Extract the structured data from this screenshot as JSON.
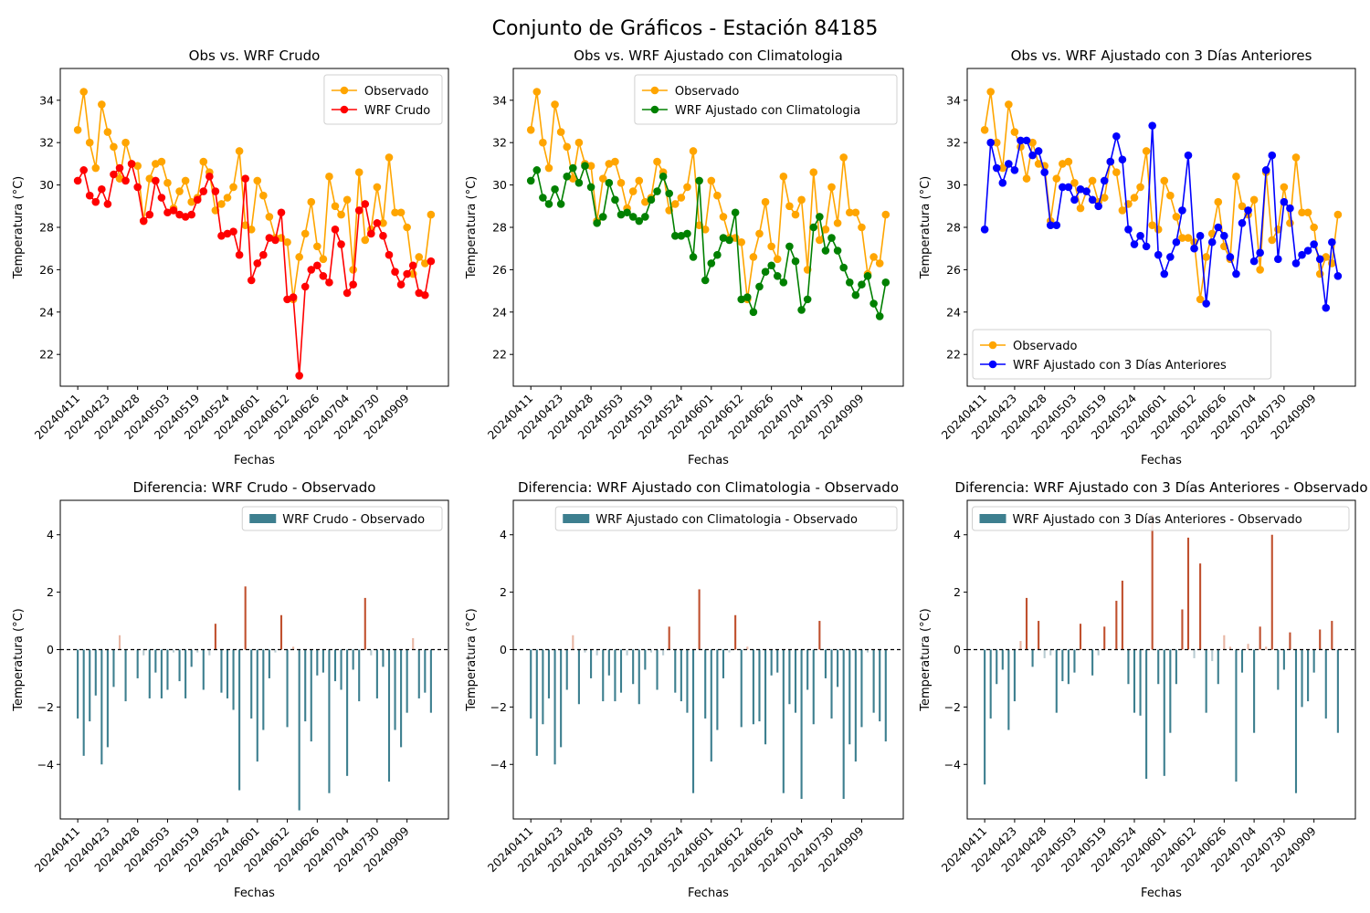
{
  "figure": {
    "suptitle": "Conjunto de Gráficos - Estación 84185"
  },
  "colors": {
    "observado": "#FFA500",
    "wrf_crudo": "#FF0000",
    "wrf_clim": "#008000",
    "wrf_3dias": "#0000FF",
    "diff_neg": "#3D7F8F",
    "diff_pos": "#C0502E",
    "diff_neg_light": "#B9CCD2",
    "diff_pos_light": "#E8B6A4"
  },
  "labels": {
    "xlabel": "Fechas",
    "ylabel": "Temperatura (°C)",
    "observado_legend": "Observado"
  },
  "chart_data": [
    {
      "type": "line",
      "title": "Obs vs. WRF Crudo",
      "ylim": [
        20.5,
        35.5
      ],
      "yticks": [
        22,
        24,
        26,
        28,
        30,
        32,
        34
      ],
      "xticklabels": [
        "20240411",
        "20240423",
        "20240428",
        "20240503",
        "20240519",
        "20240524",
        "20240601",
        "20240612",
        "20240626",
        "20240704",
        "20240730",
        "20240909"
      ],
      "legend_loc": "upper-right",
      "series": [
        {
          "name": "Observado",
          "color_key": "observado",
          "values": [
            32.6,
            34.4,
            32.0,
            30.8,
            33.8,
            32.5,
            31.8,
            30.3,
            32.0,
            31.0,
            30.9,
            28.3,
            30.3,
            31.0,
            31.1,
            30.1,
            28.9,
            29.7,
            30.2,
            29.2,
            29.4,
            31.1,
            30.6,
            28.8,
            29.1,
            29.4,
            29.9,
            31.6,
            28.1,
            27.9,
            30.2,
            29.5,
            28.5,
            27.5,
            27.5,
            27.3,
            24.6,
            26.6,
            27.7,
            29.2,
            27.1,
            26.5,
            30.4,
            29.0,
            28.6,
            29.3,
            26.0,
            30.6,
            27.4,
            27.9,
            29.9,
            28.2,
            31.3,
            28.7,
            28.7,
            28.0,
            25.8,
            26.6,
            26.3,
            28.6
          ]
        },
        {
          "name": "WRF Crudo",
          "color_key": "wrf_crudo",
          "values": [
            30.2,
            30.7,
            29.5,
            29.2,
            29.8,
            29.1,
            30.5,
            30.8,
            30.2,
            31.0,
            29.9,
            28.3,
            28.6,
            30.2,
            29.4,
            28.7,
            28.8,
            28.6,
            28.5,
            28.6,
            29.3,
            29.7,
            30.4,
            29.7,
            27.6,
            27.7,
            27.8,
            26.7,
            30.3,
            25.5,
            26.3,
            26.7,
            27.5,
            27.4,
            28.7,
            24.6,
            24.7,
            21.0,
            25.2,
            26.0,
            26.2,
            25.7,
            25.4,
            27.9,
            27.2,
            24.9,
            25.3,
            28.8,
            29.1,
            27.7,
            28.2,
            27.6,
            26.7,
            25.9,
            25.3,
            25.8,
            26.2,
            24.9,
            24.8,
            26.4
          ]
        }
      ]
    },
    {
      "type": "line",
      "title": "Obs vs. WRF Ajustado con Climatologia",
      "ylim": [
        20.5,
        35.5
      ],
      "yticks": [
        22,
        24,
        26,
        28,
        30,
        32,
        34
      ],
      "xticklabels": [
        "20240411",
        "20240423",
        "20240428",
        "20240503",
        "20240519",
        "20240524",
        "20240601",
        "20240612",
        "20240626",
        "20240704",
        "20240730",
        "20240909"
      ],
      "legend_loc": "upper-right",
      "series": [
        {
          "name": "Observado",
          "color_key": "observado",
          "values": [
            32.6,
            34.4,
            32.0,
            30.8,
            33.8,
            32.5,
            31.8,
            30.3,
            32.0,
            31.0,
            30.9,
            28.3,
            30.3,
            31.0,
            31.1,
            30.1,
            28.9,
            29.7,
            30.2,
            29.2,
            29.4,
            31.1,
            30.6,
            28.8,
            29.1,
            29.4,
            29.9,
            31.6,
            28.1,
            27.9,
            30.2,
            29.5,
            28.5,
            27.5,
            27.5,
            27.3,
            24.6,
            26.6,
            27.7,
            29.2,
            27.1,
            26.5,
            30.4,
            29.0,
            28.6,
            29.3,
            26.0,
            30.6,
            27.4,
            27.9,
            29.9,
            28.2,
            31.3,
            28.7,
            28.7,
            28.0,
            25.8,
            26.6,
            26.3,
            28.6
          ]
        },
        {
          "name": "WRF Ajustado con Climatologia",
          "color_key": "wrf_clim",
          "values": [
            30.2,
            30.7,
            29.4,
            29.1,
            29.8,
            29.1,
            30.4,
            30.8,
            30.1,
            30.9,
            29.9,
            28.2,
            28.5,
            30.1,
            29.3,
            28.6,
            28.7,
            28.5,
            28.3,
            28.5,
            29.3,
            29.7,
            30.4,
            29.6,
            27.6,
            27.6,
            27.7,
            26.6,
            30.2,
            25.5,
            26.3,
            26.7,
            27.5,
            27.4,
            28.7,
            24.6,
            24.7,
            24.0,
            25.2,
            25.9,
            26.2,
            25.7,
            25.4,
            27.1,
            26.4,
            24.1,
            24.6,
            28.0,
            28.5,
            26.9,
            27.5,
            26.9,
            26.1,
            25.4,
            24.8,
            25.3,
            25.7,
            24.4,
            23.8,
            25.4
          ]
        }
      ]
    },
    {
      "type": "line",
      "title": "Obs vs. WRF Ajustado con 3 Días Anteriores",
      "ylim": [
        20.5,
        35.5
      ],
      "yticks": [
        22,
        24,
        26,
        28,
        30,
        32,
        34
      ],
      "xticklabels": [
        "20240411",
        "20240423",
        "20240428",
        "20240503",
        "20240519",
        "20240524",
        "20240601",
        "20240612",
        "20240626",
        "20240704",
        "20240730",
        "20240909"
      ],
      "legend_loc": "lower-left",
      "series": [
        {
          "name": "Observado",
          "color_key": "observado",
          "values": [
            32.6,
            34.4,
            32.0,
            30.8,
            33.8,
            32.5,
            31.8,
            30.3,
            32.0,
            31.0,
            30.9,
            28.3,
            30.3,
            31.0,
            31.1,
            30.1,
            28.9,
            29.7,
            30.2,
            29.2,
            29.4,
            31.1,
            30.6,
            28.8,
            29.1,
            29.4,
            29.9,
            31.6,
            28.1,
            27.9,
            30.2,
            29.5,
            28.5,
            27.5,
            27.5,
            27.3,
            24.6,
            26.6,
            27.7,
            29.2,
            27.1,
            26.5,
            30.4,
            29.0,
            28.6,
            29.3,
            26.0,
            30.6,
            27.4,
            27.9,
            29.9,
            28.2,
            31.3,
            28.7,
            28.7,
            28.0,
            25.8,
            26.6,
            26.3,
            28.6
          ]
        },
        {
          "name": "WRF Ajustado con 3 Días Anteriores",
          "color_key": "wrf_3dias",
          "values": [
            27.9,
            32.0,
            30.8,
            30.1,
            31.0,
            30.7,
            32.1,
            32.1,
            31.4,
            31.6,
            30.6,
            28.1,
            28.1,
            29.9,
            29.9,
            29.3,
            29.8,
            29.7,
            29.3,
            29.0,
            30.2,
            31.1,
            32.3,
            31.2,
            27.9,
            27.2,
            27.6,
            27.1,
            32.8,
            26.7,
            25.8,
            26.6,
            27.3,
            28.8,
            31.4,
            27.0,
            27.6,
            24.4,
            27.3,
            28.0,
            27.6,
            26.6,
            25.8,
            28.2,
            28.8,
            26.4,
            26.8,
            30.7,
            31.4,
            26.5,
            29.2,
            28.9,
            26.3,
            26.7,
            26.9,
            27.2,
            26.5,
            24.2,
            27.3,
            25.7
          ]
        }
      ]
    },
    {
      "type": "bar",
      "title": "Diferencia: WRF Crudo - Observado",
      "ylim": [
        -5.9,
        5.2
      ],
      "yticks": [
        -4,
        -2,
        0,
        2,
        4
      ],
      "xticklabels": [
        "20240411",
        "20240423",
        "20240428",
        "20240503",
        "20240519",
        "20240524",
        "20240601",
        "20240612",
        "20240626",
        "20240704",
        "20240730",
        "20240909"
      ],
      "legend_loc": "upper-right",
      "series": [
        {
          "name": "WRF Crudo - Observado",
          "values": [
            -2.4,
            -3.7,
            -2.5,
            -1.6,
            -4.0,
            -3.4,
            -1.3,
            0.5,
            -1.8,
            0.0,
            -1.0,
            -0.2,
            -1.7,
            -0.8,
            -1.7,
            -1.4,
            -0.1,
            -1.1,
            -1.7,
            -0.6,
            -0.1,
            -1.4,
            -0.2,
            0.9,
            -1.5,
            -1.7,
            -2.1,
            -4.9,
            2.2,
            -2.4,
            -3.9,
            -2.8,
            -1.0,
            -0.1,
            1.2,
            -2.7,
            0.1,
            -5.6,
            -2.5,
            -3.2,
            -0.9,
            -0.8,
            -5.0,
            -1.1,
            -1.4,
            -4.4,
            -0.7,
            -1.8,
            1.8,
            -0.2,
            -1.7,
            -0.6,
            -4.6,
            -2.8,
            -3.4,
            -2.2,
            0.4,
            -1.7,
            -1.5,
            -2.2
          ]
        }
      ]
    },
    {
      "type": "bar",
      "title": "Diferencia: WRF Ajustado con Climatologia - Observado",
      "ylim": [
        -5.9,
        5.2
      ],
      "yticks": [
        -4,
        -2,
        0,
        2,
        4
      ],
      "xticklabels": [
        "20240411",
        "20240423",
        "20240428",
        "20240503",
        "20240519",
        "20240524",
        "20240601",
        "20240612",
        "20240626",
        "20240704",
        "20240730",
        "20240909"
      ],
      "legend_loc": "upper-right",
      "series": [
        {
          "name": "WRF Ajustado con Climatologia - Observado",
          "values": [
            -2.4,
            -3.7,
            -2.6,
            -1.7,
            -4.0,
            -3.4,
            -1.4,
            0.5,
            -1.9,
            -0.1,
            -1.0,
            -0.2,
            -1.8,
            -0.9,
            -1.8,
            -1.5,
            -0.2,
            -1.2,
            -1.9,
            -0.7,
            -0.1,
            -1.4,
            -0.2,
            0.8,
            -1.5,
            -1.8,
            -2.2,
            -5.0,
            2.1,
            -2.4,
            -3.9,
            -2.8,
            -1.0,
            -0.1,
            1.2,
            -2.7,
            0.1,
            -2.6,
            -2.5,
            -3.3,
            -0.9,
            -0.8,
            -5.0,
            -1.9,
            -2.2,
            -5.2,
            -1.4,
            -2.6,
            1.0,
            -1.0,
            -2.4,
            -1.3,
            -5.2,
            -3.3,
            -3.9,
            -2.7,
            -0.1,
            -2.2,
            -2.5,
            -3.2
          ]
        }
      ]
    },
    {
      "type": "bar",
      "title": "Diferencia: WRF Ajustado con 3 Días Anteriores - Observado",
      "ylim": [
        -5.9,
        5.2
      ],
      "yticks": [
        -4,
        -2,
        0,
        2,
        4
      ],
      "xticklabels": [
        "20240411",
        "20240423",
        "20240428",
        "20240503",
        "20240519",
        "20240524",
        "20240601",
        "20240612",
        "20240626",
        "20240704",
        "20240730",
        "20240909"
      ],
      "legend_loc": "upper-right",
      "series": [
        {
          "name": "WRF Ajustado con 3 Días Anteriores - Observado",
          "values": [
            -4.7,
            -2.4,
            -1.2,
            -0.7,
            -2.8,
            -1.8,
            0.3,
            1.8,
            -0.6,
            1.0,
            -0.3,
            -0.2,
            -2.2,
            -1.1,
            -1.2,
            -0.8,
            0.9,
            0.0,
            -0.9,
            -0.2,
            0.8,
            0.0,
            1.7,
            2.4,
            -1.2,
            -2.2,
            -2.3,
            -4.5,
            4.7,
            -1.2,
            -4.4,
            -2.9,
            -1.2,
            1.4,
            3.9,
            -0.3,
            3.0,
            -2.2,
            -0.4,
            -1.2,
            0.5,
            0.1,
            -4.6,
            -0.8,
            0.2,
            -2.9,
            0.8,
            0.1,
            4.0,
            -1.4,
            -0.7,
            0.6,
            -5.0,
            -2.0,
            -1.8,
            -0.8,
            0.7,
            -2.4,
            1.0,
            -2.9
          ]
        }
      ]
    }
  ]
}
